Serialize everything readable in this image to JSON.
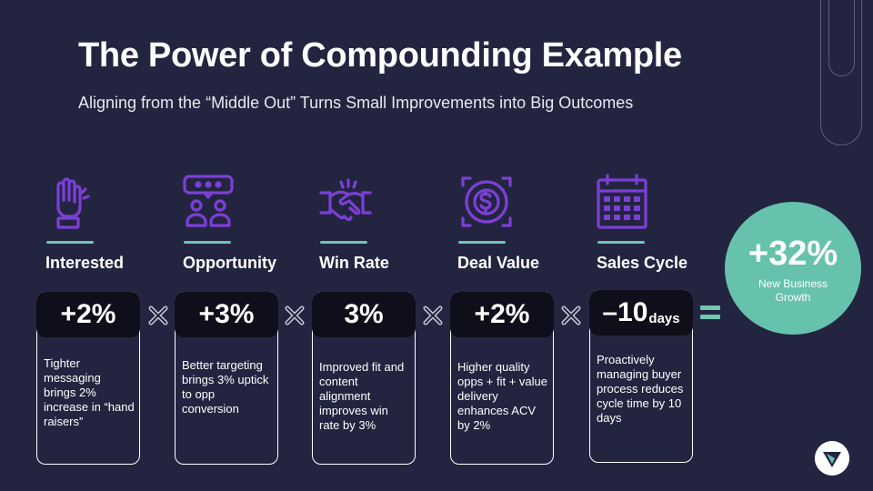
{
  "slide": {
    "title": "The Power of Compounding Example",
    "subtitle": "Aligning from the “Middle Out” Turns Small Improvements into Big Outcomes"
  },
  "metrics": [
    {
      "label": "Interested",
      "icon": "raised-hand-icon",
      "value": "+2%",
      "unit": "",
      "description": "Tighter messaging brings 2% increase in “hand raisers”"
    },
    {
      "label": "Opportunity",
      "icon": "people-chat-icon",
      "value": "+3%",
      "unit": "",
      "description": "Better targeting brings 3% uptick to opp conversion"
    },
    {
      "label": "Win Rate",
      "icon": "handshake-icon",
      "value": "3%",
      "unit": "",
      "description": "Improved fit and content alignment improves win rate by 3%"
    },
    {
      "label": "Deal Value",
      "icon": "dollar-gear-icon",
      "value": "+2%",
      "unit": "",
      "description": "Higher quality opps + fit + value delivery enhances ACV by 2%"
    },
    {
      "label": "Sales Cycle",
      "icon": "calendar-icon",
      "value": "–10",
      "unit": "days",
      "description": "Proactively managing buyer process reduces cycle time by 10 days"
    }
  ],
  "result": {
    "value": "+32%",
    "caption": "New Business Growth"
  },
  "colors": {
    "background": "#232540",
    "accent_purple": "#7c3fd6",
    "accent_teal": "#66c2ad",
    "value_box": "#0e0f1a"
  }
}
